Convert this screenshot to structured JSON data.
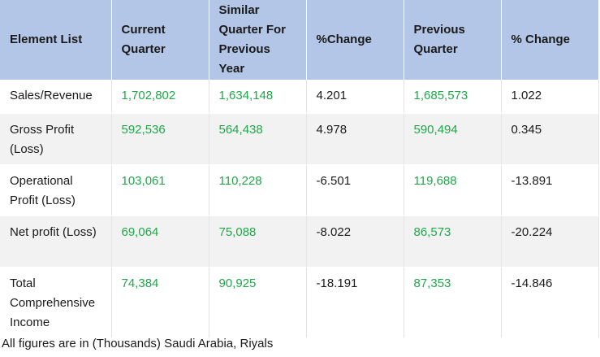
{
  "table": {
    "header": [
      "Element List",
      "Current Quarter",
      "Similar Quarter For Previous Year",
      "%Change",
      "Previous Quarter",
      "% Change"
    ],
    "rows": [
      [
        "Sales/Revenue",
        "1,702,802",
        "1,634,148",
        "4.201",
        "1,685,573",
        "1.022"
      ],
      [
        "Gross Profit (Loss)",
        "592,536",
        "564,438",
        "4.978",
        "590,494",
        "0.345"
      ],
      [
        "Operational Profit (Loss)",
        "103,061",
        "110,228",
        "-6.501",
        "119,688",
        "-13.891"
      ],
      [
        "Net profit (Loss)",
        "69,064",
        "75,088",
        "-8.022",
        "86,573",
        "-20.224"
      ],
      [
        "Total Comprehensive Income",
        "74,384",
        "90,925",
        "-18.191",
        "87,353",
        "-14.846"
      ]
    ]
  },
  "footnote": "All figures are in (Thousands) Saudi Arabia, Riyals"
}
